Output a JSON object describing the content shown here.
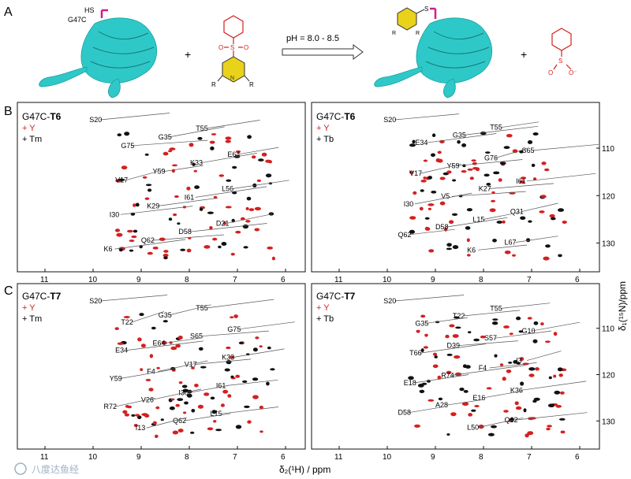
{
  "figure": {
    "panel_labels": [
      "A",
      "B",
      "C"
    ],
    "panel_a": {
      "protein_label": "G47C",
      "thiol_label": "HS",
      "plus": "+",
      "condition": "pH = 8.0 - 8.5",
      "ring_r_left": "R",
      "ring_r_right": "R",
      "product_ring_r1": "R",
      "product_ring_r2": "R",
      "product_s_label": "S",
      "sulfinate_charge": "O⁻"
    },
    "spectra": [
      {
        "id": "B-left",
        "title_prefix": "G47C-",
        "title_bold": "T6",
        "legend_red": "+ Y",
        "legend_black": "+ Tm",
        "labels": [
          "S20",
          "T55",
          "G35",
          "G75",
          "E64",
          "K33",
          "Y59",
          "V17",
          "L56",
          "I61",
          "K29",
          "I30",
          "D21",
          "D58",
          "Q62",
          "K6"
        ]
      },
      {
        "id": "B-right",
        "title_prefix": "G47C-",
        "title_bold": "T6",
        "legend_red": "+ Y",
        "legend_black": "+ Tb",
        "labels": [
          "S20",
          "T55",
          "G35",
          "E34",
          "S65",
          "G76",
          "Y59",
          "V17",
          "I61",
          "K27",
          "V5",
          "I30",
          "Q31",
          "L15",
          "D58",
          "Q62",
          "L67",
          "K6"
        ]
      },
      {
        "id": "C-left",
        "title_prefix": "G47C-",
        "title_bold": "T7",
        "legend_red": "+ Y",
        "legend_black": "+ Tm",
        "labels": [
          "S20",
          "T55",
          "G35",
          "T22",
          "G75",
          "S65",
          "E64",
          "E34",
          "K33",
          "V17",
          "F4",
          "Y59",
          "I61",
          "I30",
          "V26",
          "R72",
          "L15",
          "Q62",
          "I13"
        ]
      },
      {
        "id": "C-right",
        "title_prefix": "G47C-",
        "title_bold": "T7",
        "legend_red": "+ Y",
        "legend_black": "+ Tb",
        "labels": [
          "S20",
          "T55",
          "T22",
          "G35",
          "G10",
          "S57",
          "D39",
          "T66",
          "I3",
          "F4",
          "R74",
          "E18",
          "K36",
          "E16",
          "A28",
          "D58",
          "Q62",
          "L50"
        ]
      }
    ],
    "x_ticks": [
      "11",
      "10",
      "9",
      "8",
      "7",
      "6"
    ],
    "x_ticks_c_left": [
      "11",
      "10",
      "9",
      "8",
      "7",
      "6"
    ],
    "y_ticks": [
      "110",
      "120",
      "130"
    ],
    "x_axis_label": "δ₂(¹H) / ppm",
    "y_axis_label": "δ₁(¹⁵N)/ppm",
    "watermark": "八度达鱼经",
    "colors": {
      "red": "#d42020",
      "black": "#111111",
      "protein": "#2fc8c8",
      "pyridine": "#e8d21a",
      "linker": "#d01c8b"
    }
  }
}
